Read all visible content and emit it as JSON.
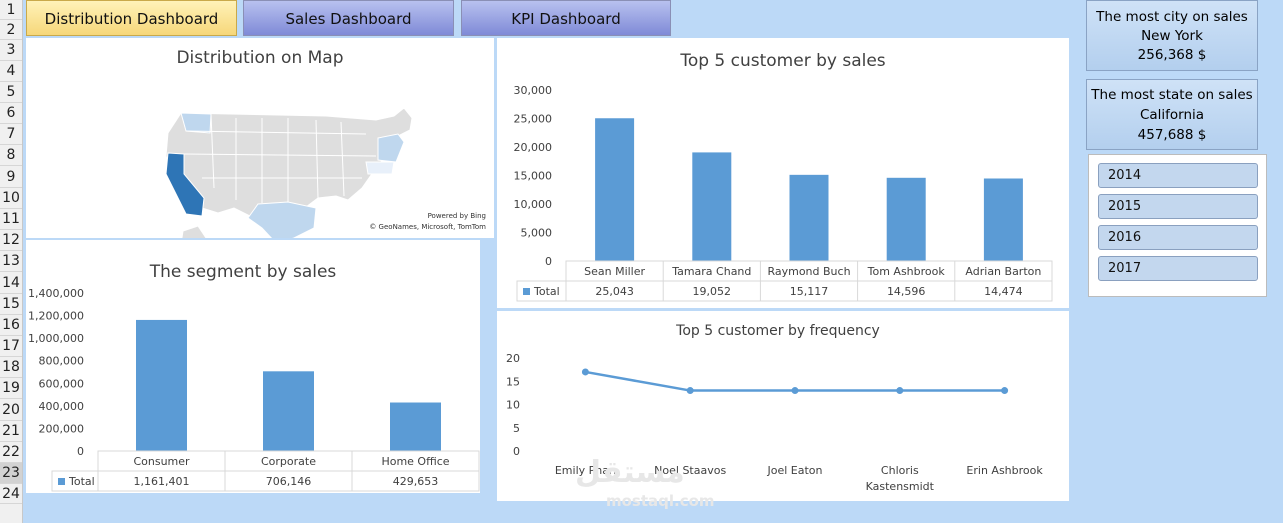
{
  "row_numbers": [
    "1",
    "2",
    "3",
    "4",
    "5",
    "6",
    "7",
    "8",
    "9",
    "10",
    "11",
    "12",
    "13",
    "14",
    "15",
    "16",
    "17",
    "18",
    "19",
    "20",
    "21",
    "22",
    "23",
    "24"
  ],
  "tabs": [
    {
      "label": "Distribution Dashboard",
      "active": true
    },
    {
      "label": "Sales Dashboard",
      "active": false
    },
    {
      "label": "KPI Dashboard",
      "active": false
    }
  ],
  "map": {
    "title": "Distribution on Map",
    "credit_line1": "Powered by Bing",
    "credit_line2": "© GeoNames, Microsoft, TomTom",
    "colors": {
      "base": "#dedede",
      "light": "#bfd7ee",
      "dark": "#2e75b6"
    }
  },
  "info": {
    "city": {
      "title": "The most city on sales",
      "name": "New York",
      "value": "256,368 $"
    },
    "state": {
      "title": "The most state on sales",
      "name": "California",
      "value": "457,688 $"
    }
  },
  "slicer": {
    "years": [
      "2014",
      "2015",
      "2016",
      "2017"
    ]
  },
  "watermark": {
    "arabic": "مستقل",
    "latin": "mostaql.com"
  },
  "chart_data": [
    {
      "type": "bar",
      "title": "Top 5 customer by sales",
      "categories": [
        "Sean Miller",
        "Tamara Chand",
        "Raymond Buch",
        "Tom Ashbrook",
        "Adrian Barton"
      ],
      "series": [
        {
          "name": "Total",
          "values": [
            25043,
            19052,
            15117,
            14596,
            14474
          ]
        }
      ],
      "data_labels": [
        "25,043",
        "19,052",
        "15,117",
        "14,596",
        "14,474"
      ],
      "yticks": [
        "0",
        "5,000",
        "10,000",
        "15,000",
        "20,000",
        "25,000",
        "30,000"
      ],
      "ylim": [
        0,
        30000
      ]
    },
    {
      "type": "bar",
      "title": "The segment by sales",
      "categories": [
        "Consumer",
        "Corporate",
        "Home Office"
      ],
      "series": [
        {
          "name": "Total",
          "values": [
            1161401,
            706146,
            429653
          ]
        }
      ],
      "data_labels": [
        "1,161,401",
        "706,146",
        "429,653"
      ],
      "yticks": [
        "0",
        "200,000",
        "400,000",
        "600,000",
        "800,000",
        "1,000,000",
        "1,200,000",
        "1,400,000"
      ],
      "ylim": [
        0,
        1400000
      ]
    },
    {
      "type": "line",
      "title": "Top 5 customer by frequency",
      "categories": [
        "Emily Phan",
        "Noel Staavos",
        "Joel Eaton",
        "Chloris Kastensmidt",
        "Erin Ashbrook"
      ],
      "series": [
        {
          "values": [
            17,
            13,
            13,
            13,
            13
          ]
        }
      ],
      "yticks": [
        "0",
        "5",
        "10",
        "15",
        "20"
      ],
      "ylim": [
        0,
        20
      ]
    }
  ]
}
